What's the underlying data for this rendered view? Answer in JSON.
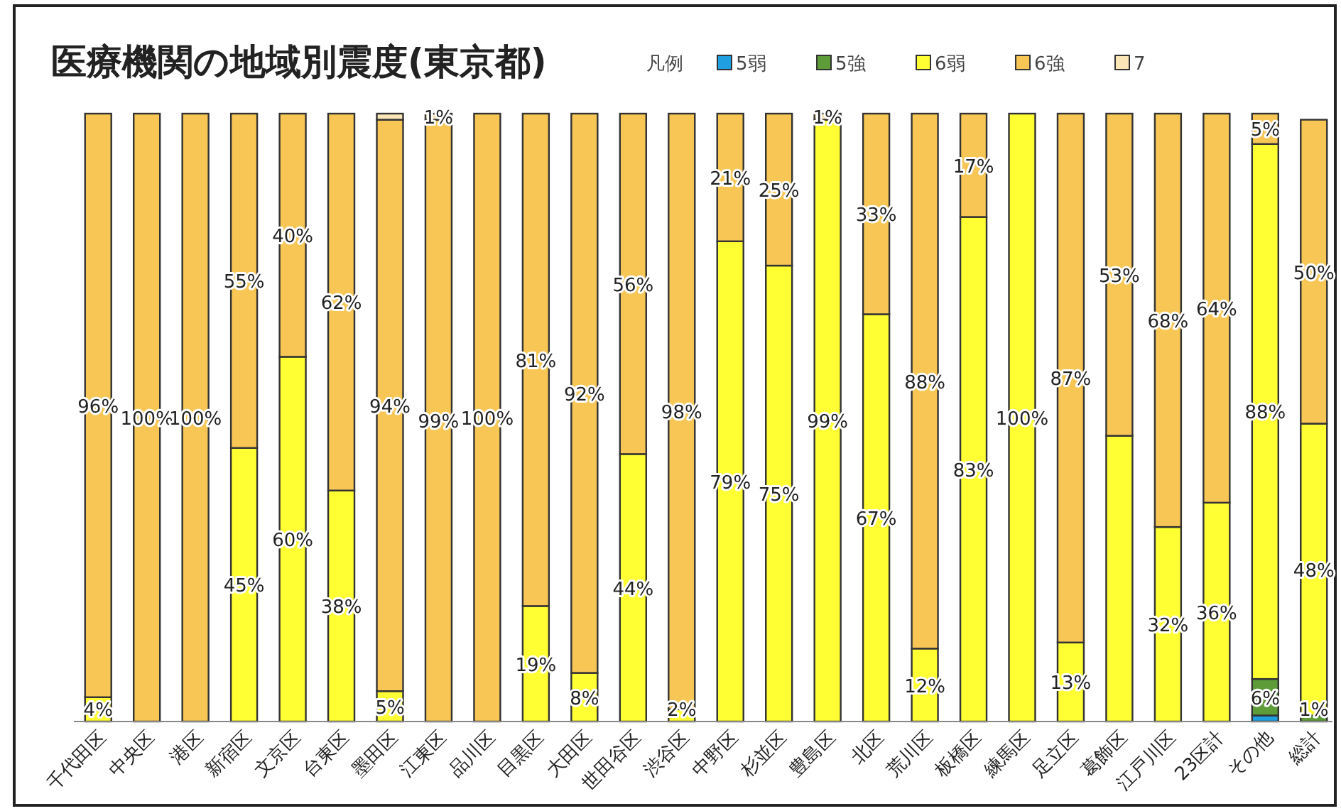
{
  "chart_data": {
    "type": "bar",
    "stacked": true,
    "title": "医療機関の地域別震度(東京都)",
    "legend_title": "凡例",
    "legend": "top right",
    "categories": [
      "千代田区",
      "中央区",
      "港区",
      "新宿区",
      "文京区",
      "台東区",
      "墨田区",
      "江東区",
      "品川区",
      "目黒区",
      "大田区",
      "世田谷区",
      "渋谷区",
      "中野区",
      "杉並区",
      "豊島区",
      "北区",
      "荒川区",
      "板橋区",
      "練馬区",
      "足立区",
      "葛飾区",
      "江戸川区",
      "23区計",
      "その他",
      "総計"
    ],
    "series": [
      {
        "name": "5弱",
        "color": "#1f9ee0",
        "values": [
          null,
          null,
          null,
          null,
          null,
          null,
          null,
          null,
          null,
          null,
          null,
          null,
          null,
          null,
          null,
          null,
          null,
          null,
          null,
          null,
          null,
          null,
          null,
          null,
          1,
          null
        ],
        "value_labels": [
          null,
          null,
          null,
          null,
          null,
          null,
          null,
          null,
          null,
          null,
          null,
          null,
          null,
          null,
          null,
          null,
          null,
          null,
          null,
          null,
          null,
          null,
          null,
          null,
          null,
          null
        ]
      },
      {
        "name": "5強",
        "color": "#5e9c3a",
        "values": [
          null,
          null,
          null,
          null,
          null,
          null,
          null,
          null,
          null,
          null,
          null,
          null,
          null,
          null,
          null,
          null,
          null,
          null,
          null,
          null,
          null,
          null,
          null,
          null,
          6,
          1
        ],
        "value_labels": [
          null,
          null,
          null,
          null,
          null,
          null,
          null,
          null,
          null,
          null,
          null,
          null,
          null,
          null,
          null,
          null,
          null,
          null,
          null,
          null,
          null,
          null,
          null,
          null,
          "6%",
          "1%"
        ]
      },
      {
        "name": "6弱",
        "color": "#ffff33",
        "values": [
          4,
          null,
          null,
          45,
          60,
          38,
          5,
          null,
          null,
          19,
          8,
          44,
          2,
          79,
          75,
          99,
          67,
          12,
          83,
          100,
          13,
          47,
          32,
          36,
          88,
          48
        ],
        "value_labels": [
          "4%",
          null,
          null,
          "45%",
          "60%",
          "38%",
          "5%",
          null,
          null,
          "19%",
          "8%",
          "44%",
          "2%",
          "79%",
          "75%",
          "99%",
          "67%",
          "12%",
          "83%",
          "100%",
          "13%",
          null,
          "32%",
          "36%",
          "88%",
          "48%"
        ]
      },
      {
        "name": "6強",
        "color": "#f7c655",
        "values": [
          96,
          100,
          100,
          55,
          40,
          62,
          94,
          99,
          100,
          81,
          92,
          56,
          98,
          21,
          25,
          null,
          33,
          88,
          17,
          null,
          87,
          53,
          68,
          64,
          5,
          50
        ],
        "value_labels": [
          "96%",
          "100%",
          "100%",
          "55%",
          "40%",
          "62%",
          "94%",
          "99%",
          "100%",
          "81%",
          "92%",
          "56%",
          "98%",
          "21%",
          "25%",
          null,
          "33%",
          "88%",
          "17%",
          null,
          "87%",
          "53%",
          "68%",
          "64%",
          "5%",
          "50%"
        ]
      },
      {
        "name": "7",
        "color": "#fbe6b8",
        "values": [
          null,
          null,
          null,
          null,
          null,
          null,
          1,
          1,
          null,
          null,
          null,
          null,
          null,
          null,
          null,
          1,
          null,
          null,
          null,
          null,
          null,
          null,
          null,
          null,
          null,
          null
        ],
        "value_labels": [
          null,
          null,
          null,
          null,
          null,
          null,
          null,
          "1%",
          null,
          null,
          null,
          null,
          null,
          null,
          null,
          "1%",
          null,
          null,
          null,
          null,
          null,
          null,
          null,
          null,
          null,
          null
        ]
      }
    ]
  }
}
